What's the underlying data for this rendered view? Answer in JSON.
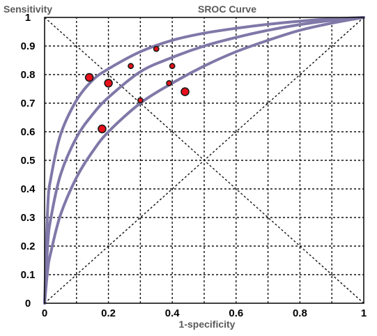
{
  "chart_data": {
    "type": "scatter",
    "title": "SROC Curve",
    "ylabel": "Sensitivity",
    "xlabel": "1-specificity",
    "xlim": [
      0,
      1
    ],
    "ylim": [
      0,
      1
    ],
    "x_ticks": [
      "0",
      "0.2",
      "0.4",
      "0.6",
      "0.8",
      "1"
    ],
    "y_ticks": [
      "0",
      "0.1",
      "0.2",
      "0.3",
      "0.4",
      "0.5",
      "0.6",
      "0.7",
      "0.8",
      "0.9",
      "1"
    ],
    "grid": true,
    "grid_step": 0.1,
    "reference_lines": [
      "chance diagonal",
      "anti-diagonal"
    ],
    "curves": [
      {
        "x": [
          0,
          0.01,
          0.02,
          0.05,
          0.1,
          0.15,
          0.2,
          0.3,
          0.4,
          0.5,
          0.6,
          0.7,
          0.8,
          0.9,
          1
        ],
        "y": [
          0,
          0.34,
          0.44,
          0.59,
          0.71,
          0.78,
          0.82,
          0.88,
          0.92,
          0.945,
          0.962,
          0.976,
          0.987,
          0.995,
          1
        ]
      },
      {
        "x": [
          0,
          0.01,
          0.02,
          0.05,
          0.1,
          0.15,
          0.2,
          0.3,
          0.4,
          0.5,
          0.6,
          0.7,
          0.8,
          0.9,
          1
        ],
        "y": [
          0,
          0.21,
          0.3,
          0.45,
          0.58,
          0.66,
          0.72,
          0.81,
          0.86,
          0.9,
          0.93,
          0.955,
          0.975,
          0.99,
          1
        ]
      },
      {
        "x": [
          0,
          0.01,
          0.02,
          0.05,
          0.1,
          0.15,
          0.2,
          0.3,
          0.4,
          0.5,
          0.6,
          0.7,
          0.8,
          0.9,
          1
        ],
        "y": [
          0,
          0.12,
          0.18,
          0.31,
          0.44,
          0.53,
          0.6,
          0.7,
          0.77,
          0.83,
          0.88,
          0.92,
          0.955,
          0.98,
          1
        ]
      }
    ],
    "points": [
      {
        "x": 0.14,
        "y": 0.79,
        "size": "large"
      },
      {
        "x": 0.2,
        "y": 0.77,
        "size": "large"
      },
      {
        "x": 0.18,
        "y": 0.61,
        "size": "large"
      },
      {
        "x": 0.27,
        "y": 0.83,
        "size": "small"
      },
      {
        "x": 0.35,
        "y": 0.89,
        "size": "small"
      },
      {
        "x": 0.3,
        "y": 0.71,
        "size": "small"
      },
      {
        "x": 0.4,
        "y": 0.83,
        "size": "small"
      },
      {
        "x": 0.39,
        "y": 0.77,
        "size": "small"
      },
      {
        "x": 0.44,
        "y": 0.74,
        "size": "large"
      }
    ],
    "colors": {
      "curve": "#7f78a8",
      "point_fill": "#e8101a",
      "point_stroke": "#1a1a1a",
      "grid": "#111111",
      "text": "#000000",
      "title_text": "#5a5a5a"
    }
  }
}
